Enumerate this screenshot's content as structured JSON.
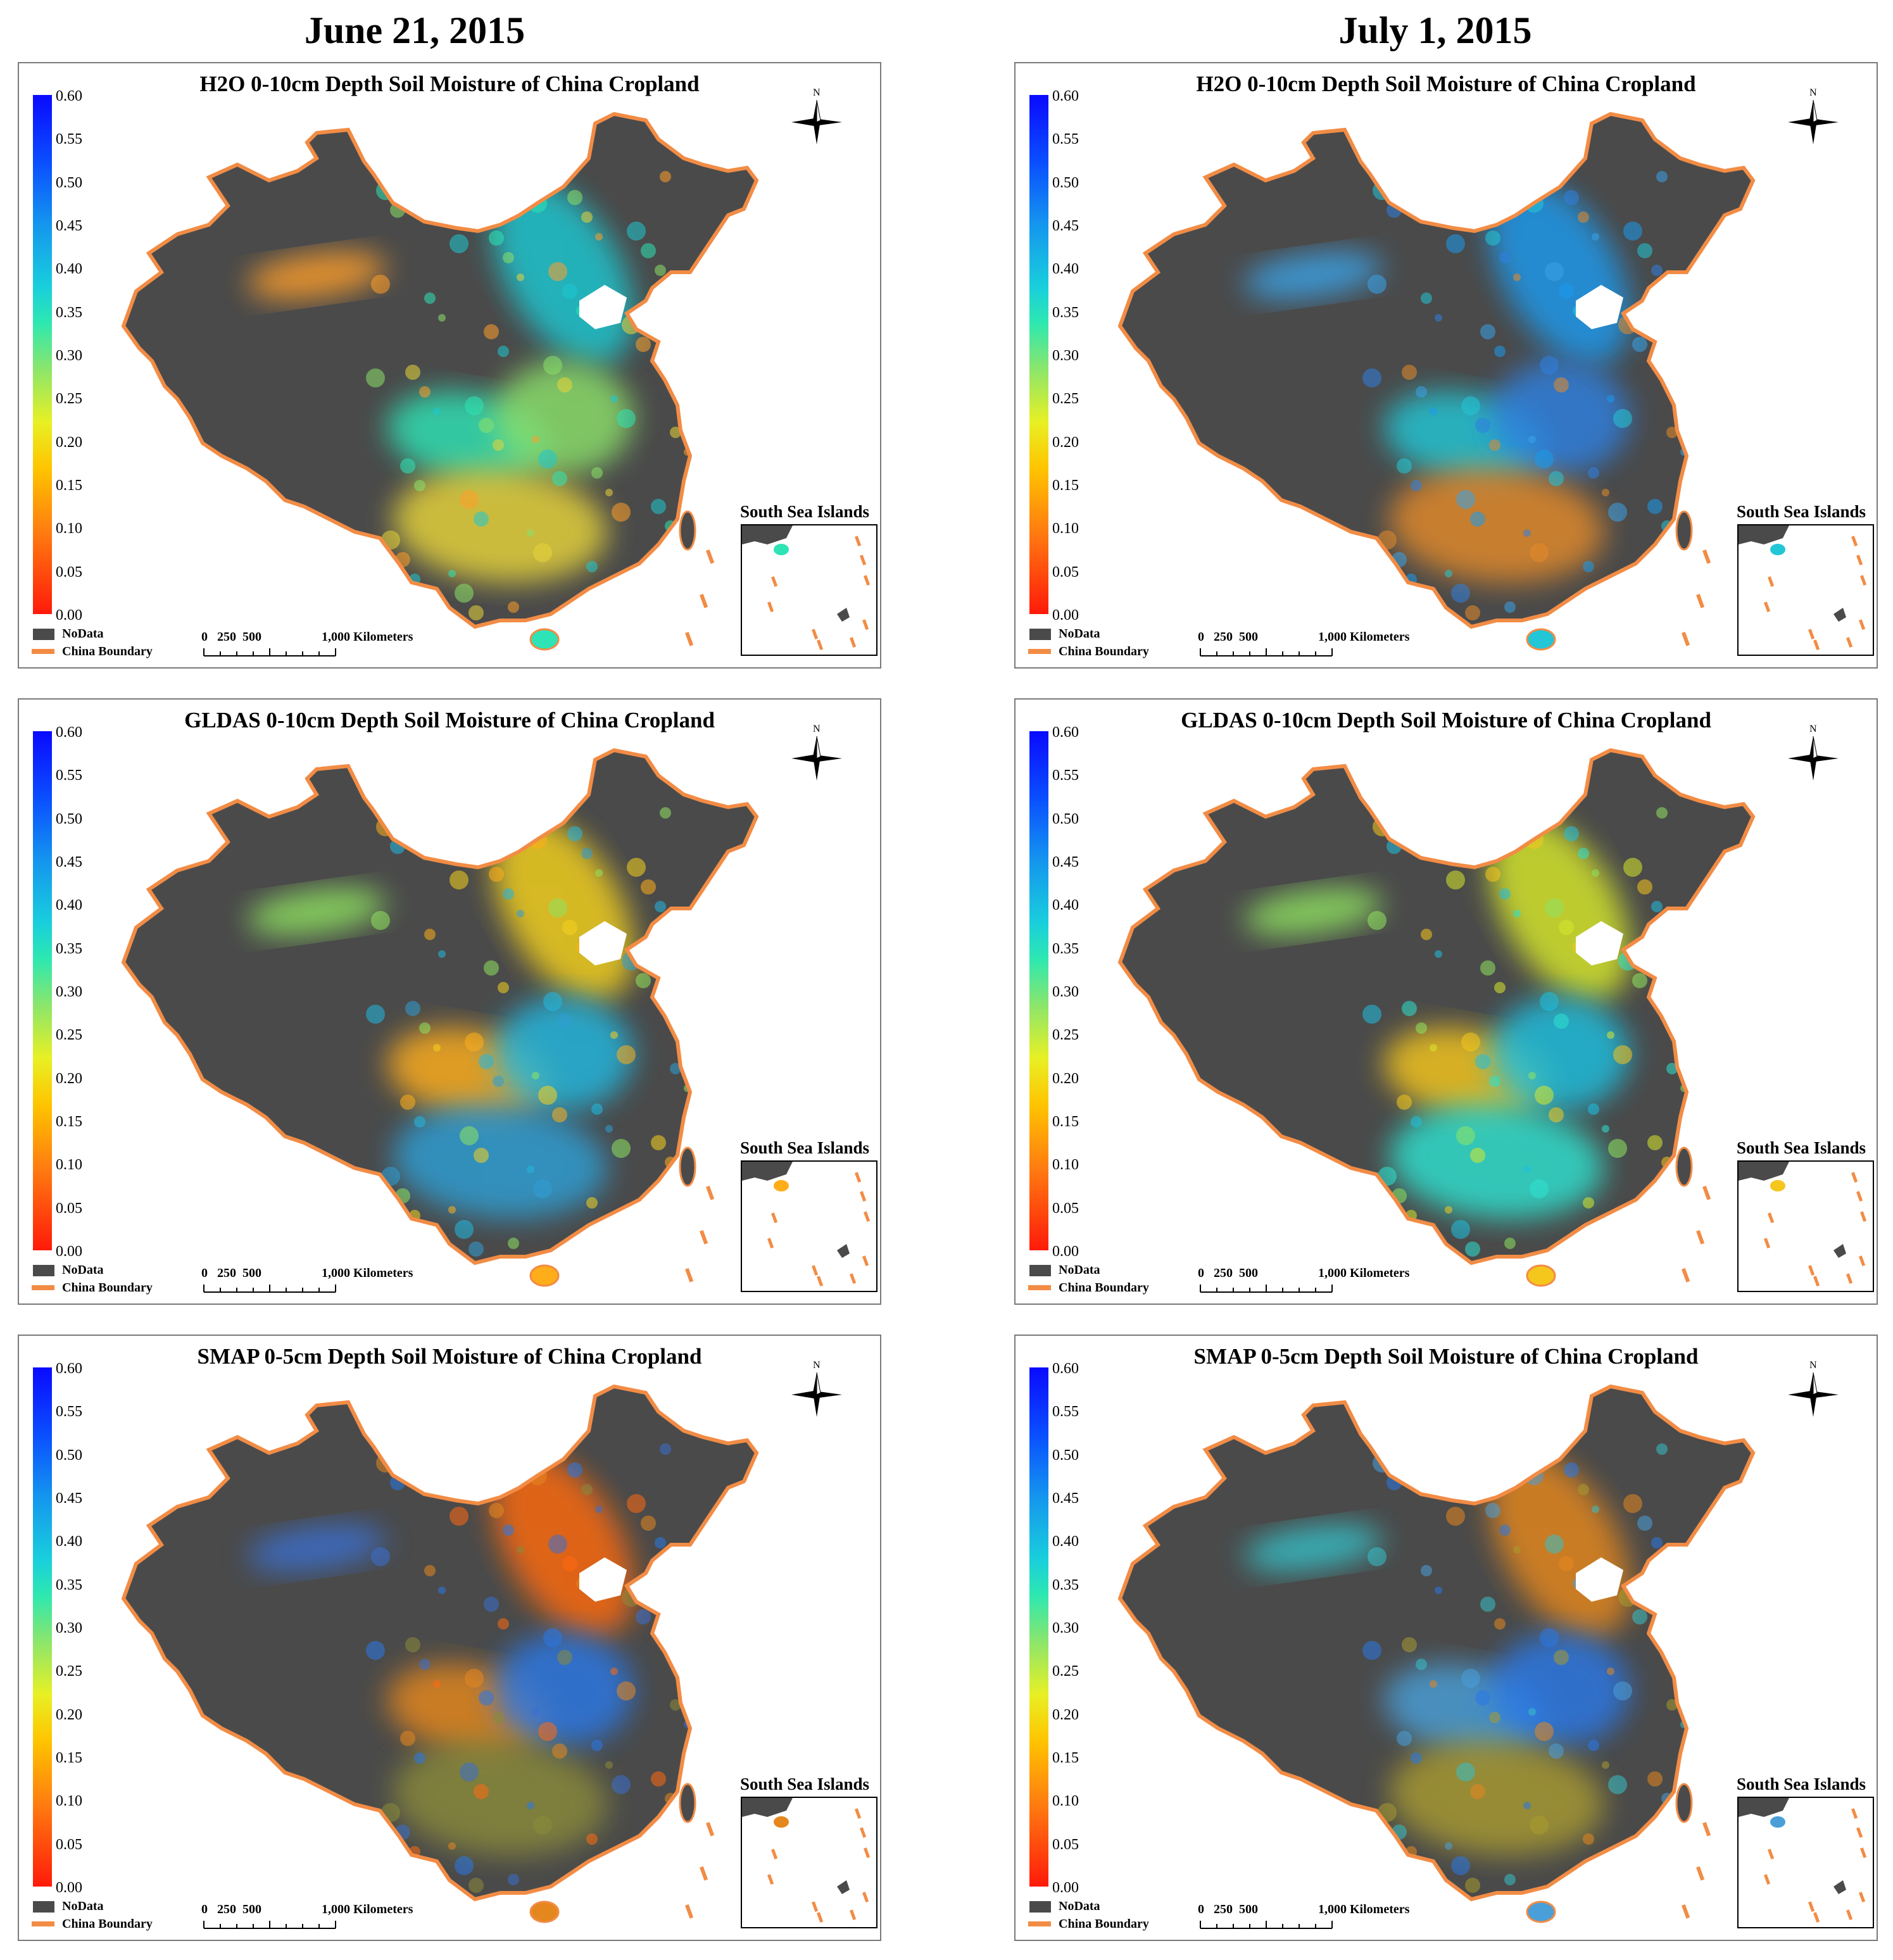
{
  "figure": {
    "columns": [
      {
        "date": "June 21, 2015"
      },
      {
        "date": "July 1, 2015"
      }
    ],
    "rows": [
      {
        "title": "H2O 0-10cm Depth Soil Moisture of China Cropland"
      },
      {
        "title": "GLDAS 0-10cm Depth Soil Moisture of China Cropland"
      },
      {
        "title": "SMAP 0-5cm Depth Soil Moisture of China Cropland"
      }
    ]
  },
  "legend": {
    "ticks": [
      "0.60",
      "0.55",
      "0.50",
      "0.45",
      "0.40",
      "0.35",
      "0.30",
      "0.25",
      "0.20",
      "0.15",
      "0.10",
      "0.05",
      "0.00"
    ],
    "tick_values": [
      0.6,
      0.55,
      0.5,
      0.45,
      0.4,
      0.35,
      0.3,
      0.25,
      0.2,
      0.15,
      0.1,
      0.05,
      0.0
    ],
    "nodata_label": "NoData",
    "boundary_label": "China Boundary"
  },
  "scale": {
    "numbers": "0   250  500",
    "end_label": "1,000 Kilometers"
  },
  "north_arrow": {
    "label": "N"
  },
  "inset": {
    "title": "South Sea Islands"
  },
  "colors": {
    "nodata": "#4a4a4a",
    "boundary": "#f28c45",
    "panel_border": "#7a7a7a",
    "h2o_jun": [
      "#1ec8d2",
      "#2ee3b5",
      "#8be06a",
      "#e7d43a",
      "#ff9f2a"
    ],
    "h2o_jul": [
      "#1a9aee",
      "#22c6d6",
      "#2f80e0",
      "#e38a2a",
      "#3aa3e8"
    ],
    "gldas_jun": [
      "#f5d21e",
      "#ffae1a",
      "#23b8e0",
      "#2f9fd4",
      "#8fe360"
    ],
    "gldas_jul": [
      "#d7e82c",
      "#f5c61c",
      "#1fc0e0",
      "#2ee2d0",
      "#8fe360"
    ],
    "smap_jun": [
      "#ff6a10",
      "#e5871f",
      "#2a78e6",
      "#8a8a3a",
      "#3a6fd0"
    ],
    "smap_jul": [
      "#e5871f",
      "#4a9fd8",
      "#2a78e6",
      "#a89a30",
      "#36c0c8"
    ]
  }
}
